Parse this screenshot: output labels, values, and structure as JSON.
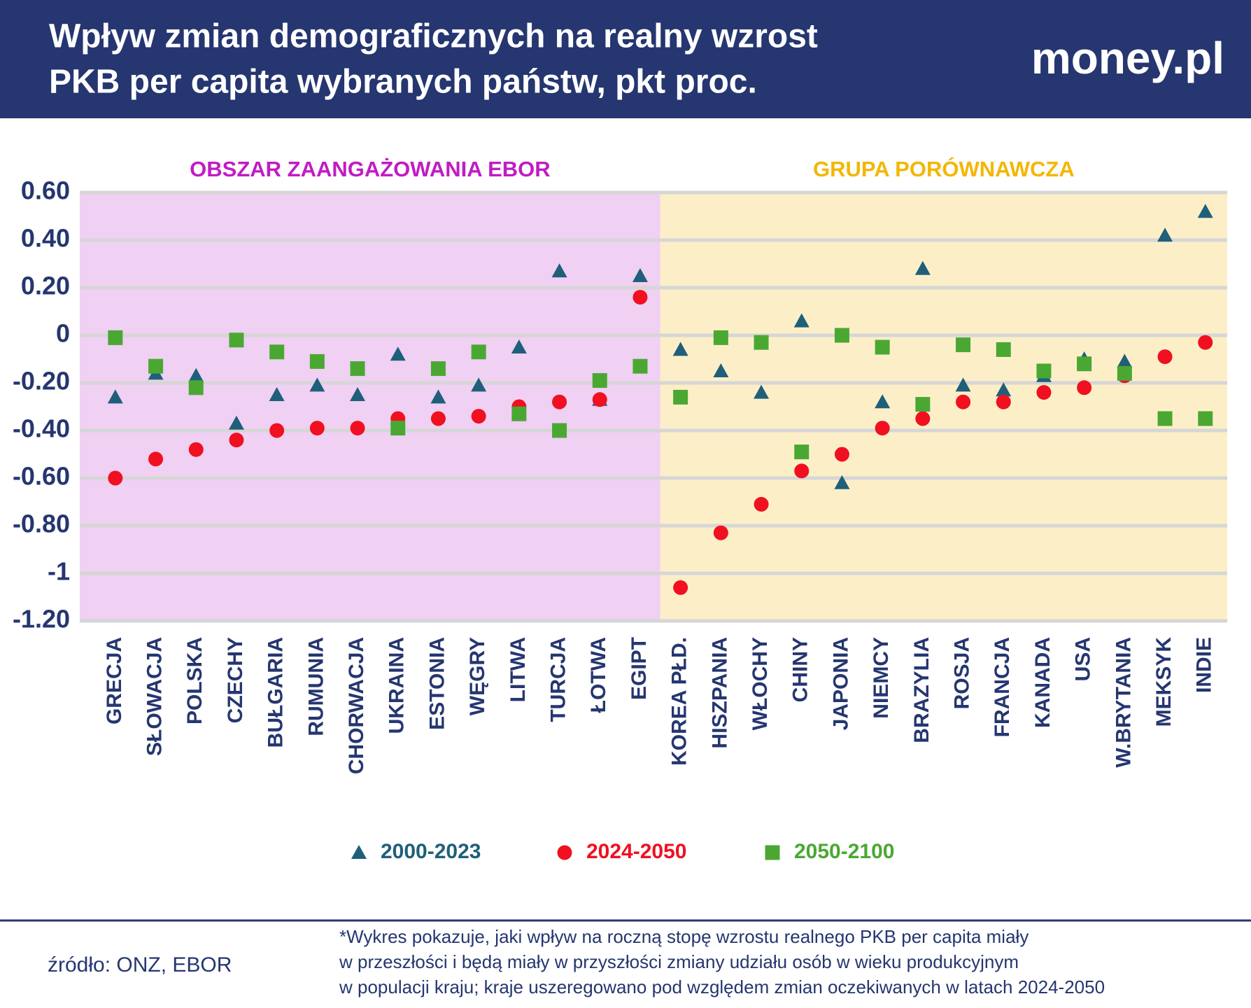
{
  "header": {
    "title_lines": [
      "Wpływ zmian demograficznych na realny wzrost",
      "PKB per capita wybranych państw, pkt proc."
    ],
    "logo": "money.pl"
  },
  "chart_data": {
    "type": "scatter",
    "categories": [
      "GRECJA",
      "SŁOWACJA",
      "POLSKA",
      "CZECHY",
      "BUŁGARIA",
      "RUMUNIA",
      "CHORWACJA",
      "UKRAINA",
      "ESTONIA",
      "WĘGRY",
      "LITWA",
      "TURCJA",
      "ŁOTWA",
      "EGIPT",
      "KOREA PŁD.",
      "HISZPANIA",
      "WŁOCHY",
      "CHINY",
      "JAPONIA",
      "NIEMCY",
      "BRAZYLIA",
      "ROSJA",
      "FRANCJA",
      "KANADA",
      "USA",
      "W.BRYTANIA",
      "MEKSYK",
      "INDIE"
    ],
    "regions": [
      {
        "label": "OBSZAR ZAANGAŻOWANIA EBOR",
        "start": "GRECJA",
        "end": "EGIPT",
        "color": "#f0d0f3",
        "label_color": "#c11cc4"
      },
      {
        "label": "GRUPA PORÓWNAWCZA",
        "start": "KOREA PŁD.",
        "end": "INDIE",
        "color": "#fcefc8",
        "label_color": "#f2b705"
      }
    ],
    "series": [
      {
        "name": "2000-2023",
        "color": "#1f5f7a",
        "marker": "triangle",
        "values": [
          -0.26,
          -0.16,
          -0.17,
          -0.37,
          -0.25,
          -0.21,
          -0.25,
          -0.08,
          -0.26,
          -0.21,
          -0.05,
          0.27,
          -0.27,
          0.25,
          -0.06,
          -0.15,
          -0.24,
          0.06,
          -0.62,
          -0.28,
          0.28,
          -0.21,
          -0.23,
          -0.17,
          -0.1,
          -0.11,
          0.42,
          0.52
        ]
      },
      {
        "name": "2024-2050",
        "color": "#f01020",
        "marker": "circle",
        "values": [
          -0.6,
          -0.52,
          -0.48,
          -0.44,
          -0.4,
          -0.39,
          -0.39,
          -0.35,
          -0.35,
          -0.34,
          -0.3,
          -0.28,
          -0.27,
          0.16,
          -1.06,
          -0.83,
          -0.71,
          -0.57,
          -0.5,
          -0.39,
          -0.35,
          -0.28,
          -0.28,
          -0.24,
          -0.22,
          -0.17,
          -0.09,
          -0.03
        ]
      },
      {
        "name": "2050-2100",
        "color": "#4aa832",
        "marker": "square",
        "values": [
          -0.01,
          -0.13,
          -0.22,
          -0.02,
          -0.07,
          -0.11,
          -0.14,
          -0.39,
          -0.14,
          -0.07,
          -0.33,
          -0.4,
          -0.19,
          -0.13,
          -0.26,
          -0.01,
          -0.03,
          -0.49,
          0,
          -0.05,
          -0.29,
          -0.04,
          -0.06,
          -0.15,
          -0.12,
          -0.16,
          -0.35,
          -0.35
        ]
      }
    ],
    "ylim": [
      -1.2,
      0.6
    ],
    "yticks": [
      {
        "value": -1.2,
        "label": "-1.20"
      },
      {
        "value": -0.8,
        "label": "-0.80"
      },
      {
        "value": -0.6,
        "label": "-0.60"
      },
      {
        "value": -0.4,
        "label": "-0.40"
      },
      {
        "value": -0.2,
        "label": "-0.20"
      },
      0,
      {
        "value": 0.2,
        "label": "0.20"
      },
      {
        "value": 0.4,
        "label": "0.40"
      },
      {
        "value": 0.6,
        "label": "0.60"
      },
      -1
    ],
    "grid": true
  },
  "footer": {
    "source": "źródło: ONZ, EBOR",
    "note_lines": [
      "*Wykres pokazuje, jaki wpływ na roczną stopę wzrostu realnego PKB per capita miały",
      "w przeszłości i będą miały w przyszłości zmiany udziału osób w wieku produkcyjnym",
      "w populacji kraju; kraje uszeregowano pod względem zmian oczekiwanych w latach 2024-2050"
    ]
  }
}
